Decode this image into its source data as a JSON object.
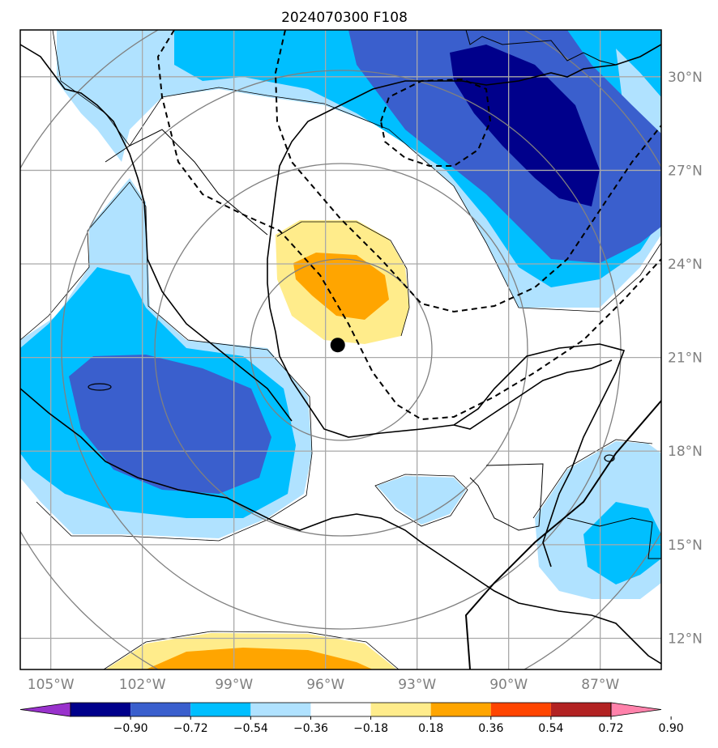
{
  "title": "2024070300 F108",
  "map": {
    "lon_range": [
      -106,
      -85
    ],
    "lat_range": [
      11,
      31.5
    ],
    "meridians": [
      {
        "lon": -105,
        "label": "105°W"
      },
      {
        "lon": -102,
        "label": "102°W"
      },
      {
        "lon": -99,
        "label": "99°W"
      },
      {
        "lon": -96,
        "label": "96°W"
      },
      {
        "lon": -93,
        "label": "93°W"
      },
      {
        "lon": -90,
        "label": "90°W"
      },
      {
        "lon": -87,
        "label": "87°W"
      }
    ],
    "parallels": [
      {
        "lat": 12,
        "label": "12°N"
      },
      {
        "lat": 15,
        "label": "15°N"
      },
      {
        "lat": 18,
        "label": "18°N"
      },
      {
        "lat": 21,
        "label": "21°N"
      },
      {
        "lat": 24,
        "label": "24°N"
      },
      {
        "lat": 27,
        "label": "27°N"
      },
      {
        "lat": 30,
        "label": "30°N"
      }
    ],
    "center_marker": {
      "lon": -95.6,
      "lat": 21.4
    }
  },
  "colorbar": {
    "colors": [
      "#9932cc",
      "#00008b",
      "#3a5fcd",
      "#00bfff",
      "#b0e2ff",
      "#ffffff",
      "#ffec8b",
      "#ffa500",
      "#ff4500",
      "#b22222",
      "#ff82ab"
    ],
    "tick_labels": [
      "−0.90",
      "−0.72",
      "−0.54",
      "−0.36",
      "−0.18",
      "0.18",
      "0.36",
      "0.54",
      "0.72",
      "0.90"
    ]
  }
}
